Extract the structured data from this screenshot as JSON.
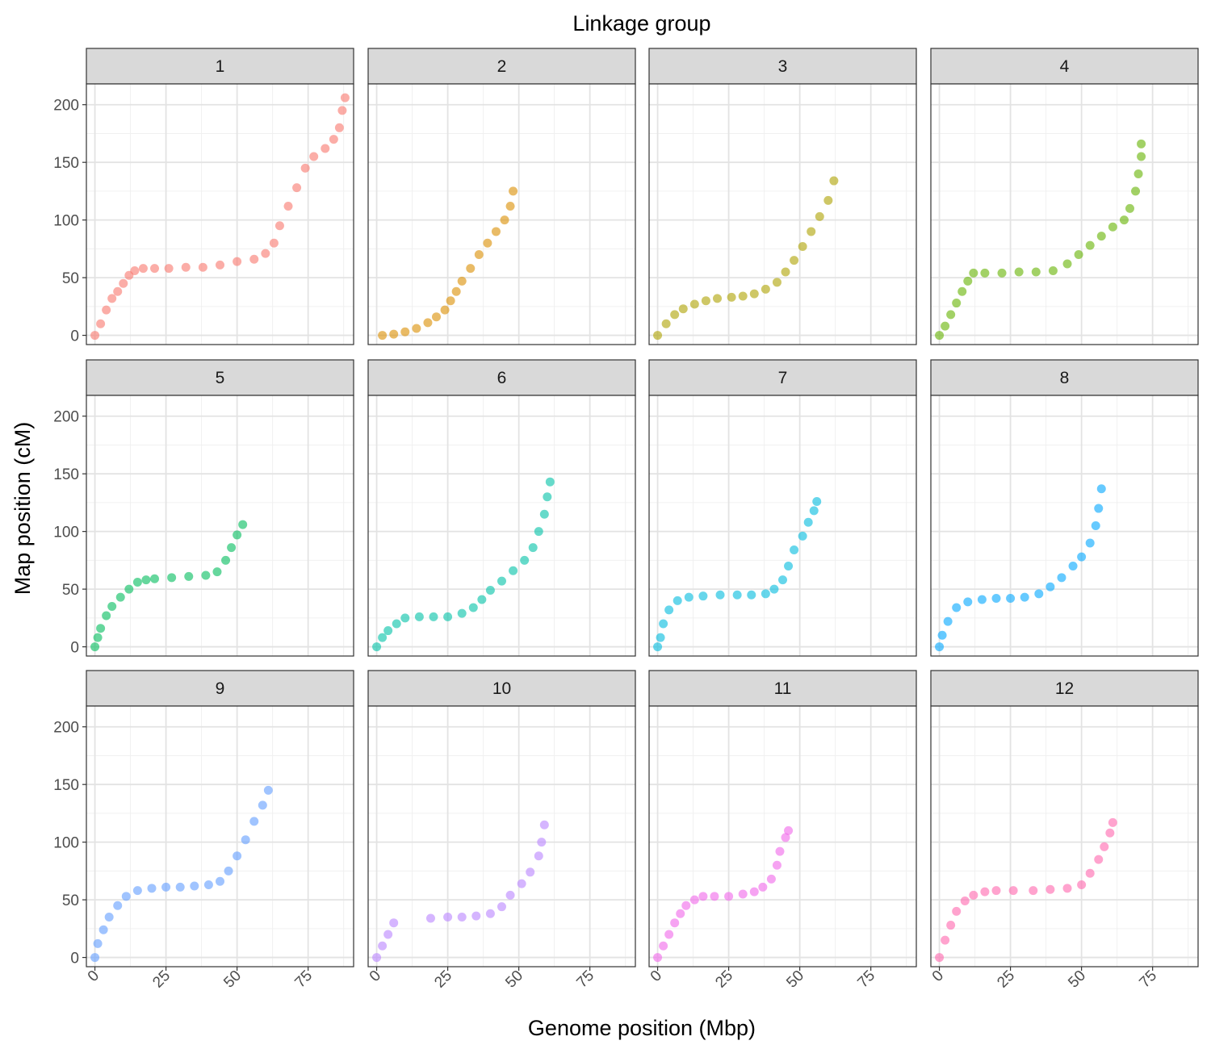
{
  "chart_data": {
    "type": "scatter",
    "title": "Linkage group",
    "xlabel": "Genome position (Mbp)",
    "ylabel": "Map position (cM)",
    "xlim": [
      -3,
      91
    ],
    "ylim": [
      -8,
      218
    ],
    "x_ticks": [
      "0",
      "25",
      "50",
      "75"
    ],
    "y_ticks": [
      "0",
      "50",
      "100",
      "150",
      "200"
    ],
    "grid": true,
    "legend": "none",
    "panels": [
      {
        "label": "1",
        "color": "#F8766D",
        "points": [
          [
            0,
            0
          ],
          [
            2,
            10
          ],
          [
            4,
            22
          ],
          [
            6,
            32
          ],
          [
            8,
            38
          ],
          [
            10,
            45
          ],
          [
            12,
            52
          ],
          [
            14,
            56
          ],
          [
            17,
            58
          ],
          [
            21,
            58
          ],
          [
            26,
            58
          ],
          [
            32,
            59
          ],
          [
            38,
            59
          ],
          [
            44,
            61
          ],
          [
            50,
            64
          ],
          [
            56,
            66
          ],
          [
            60,
            71
          ],
          [
            63,
            80
          ],
          [
            65,
            95
          ],
          [
            68,
            112
          ],
          [
            71,
            128
          ],
          [
            74,
            145
          ],
          [
            77,
            155
          ],
          [
            81,
            162
          ],
          [
            84,
            170
          ],
          [
            86,
            180
          ],
          [
            87,
            195
          ],
          [
            88,
            206
          ]
        ]
      },
      {
        "label": "2",
        "color": "#DB8E00",
        "points": [
          [
            2,
            0
          ],
          [
            6,
            1
          ],
          [
            10,
            3
          ],
          [
            14,
            6
          ],
          [
            18,
            11
          ],
          [
            21,
            16
          ],
          [
            24,
            22
          ],
          [
            26,
            30
          ],
          [
            28,
            38
          ],
          [
            30,
            47
          ],
          [
            33,
            58
          ],
          [
            36,
            70
          ],
          [
            39,
            80
          ],
          [
            42,
            90
          ],
          [
            45,
            100
          ],
          [
            47,
            112
          ],
          [
            48,
            125
          ]
        ]
      },
      {
        "label": "3",
        "color": "#AEA200",
        "points": [
          [
            0,
            0
          ],
          [
            3,
            10
          ],
          [
            6,
            18
          ],
          [
            9,
            23
          ],
          [
            13,
            27
          ],
          [
            17,
            30
          ],
          [
            21,
            32
          ],
          [
            26,
            33
          ],
          [
            30,
            34
          ],
          [
            34,
            36
          ],
          [
            38,
            40
          ],
          [
            42,
            46
          ],
          [
            45,
            55
          ],
          [
            48,
            65
          ],
          [
            51,
            77
          ],
          [
            54,
            90
          ],
          [
            57,
            103
          ],
          [
            60,
            117
          ],
          [
            62,
            134
          ]
        ]
      },
      {
        "label": "4",
        "color": "#64B200",
        "points": [
          [
            0,
            0
          ],
          [
            2,
            8
          ],
          [
            4,
            18
          ],
          [
            6,
            28
          ],
          [
            8,
            38
          ],
          [
            10,
            47
          ],
          [
            12,
            54
          ],
          [
            16,
            54
          ],
          [
            22,
            54
          ],
          [
            28,
            55
          ],
          [
            34,
            55
          ],
          [
            40,
            56
          ],
          [
            45,
            62
          ],
          [
            49,
            70
          ],
          [
            53,
            78
          ],
          [
            57,
            86
          ],
          [
            61,
            94
          ],
          [
            65,
            100
          ],
          [
            67,
            110
          ],
          [
            69,
            125
          ],
          [
            70,
            140
          ],
          [
            71,
            155
          ],
          [
            71,
            166
          ]
        ]
      },
      {
        "label": "5",
        "color": "#00BD5C",
        "points": [
          [
            0,
            0
          ],
          [
            1,
            8
          ],
          [
            2,
            16
          ],
          [
            4,
            27
          ],
          [
            6,
            35
          ],
          [
            9,
            43
          ],
          [
            12,
            50
          ],
          [
            15,
            56
          ],
          [
            18,
            58
          ],
          [
            21,
            59
          ],
          [
            27,
            60
          ],
          [
            33,
            61
          ],
          [
            39,
            62
          ],
          [
            43,
            65
          ],
          [
            46,
            75
          ],
          [
            48,
            86
          ],
          [
            50,
            97
          ],
          [
            52,
            106
          ]
        ]
      },
      {
        "label": "6",
        "color": "#00C1A7",
        "points": [
          [
            0,
            0
          ],
          [
            2,
            8
          ],
          [
            4,
            14
          ],
          [
            7,
            20
          ],
          [
            10,
            25
          ],
          [
            15,
            26
          ],
          [
            20,
            26
          ],
          [
            25,
            26
          ],
          [
            30,
            29
          ],
          [
            34,
            34
          ],
          [
            37,
            41
          ],
          [
            40,
            49
          ],
          [
            44,
            57
          ],
          [
            48,
            66
          ],
          [
            52,
            75
          ],
          [
            55,
            86
          ],
          [
            57,
            100
          ],
          [
            59,
            115
          ],
          [
            60,
            130
          ],
          [
            61,
            143
          ]
        ]
      },
      {
        "label": "7",
        "color": "#00BADE",
        "points": [
          [
            0,
            0
          ],
          [
            1,
            8
          ],
          [
            2,
            20
          ],
          [
            4,
            32
          ],
          [
            7,
            40
          ],
          [
            11,
            43
          ],
          [
            16,
            44
          ],
          [
            22,
            45
          ],
          [
            28,
            45
          ],
          [
            33,
            45
          ],
          [
            38,
            46
          ],
          [
            41,
            50
          ],
          [
            44,
            58
          ],
          [
            46,
            70
          ],
          [
            48,
            84
          ],
          [
            51,
            96
          ],
          [
            53,
            108
          ],
          [
            55,
            118
          ],
          [
            56,
            126
          ]
        ]
      },
      {
        "label": "8",
        "color": "#00A6FF",
        "points": [
          [
            0,
            0
          ],
          [
            1,
            10
          ],
          [
            3,
            22
          ],
          [
            6,
            34
          ],
          [
            10,
            39
          ],
          [
            15,
            41
          ],
          [
            20,
            42
          ],
          [
            25,
            42
          ],
          [
            30,
            43
          ],
          [
            35,
            46
          ],
          [
            39,
            52
          ],
          [
            43,
            60
          ],
          [
            47,
            70
          ],
          [
            50,
            78
          ],
          [
            53,
            90
          ],
          [
            55,
            105
          ],
          [
            56,
            120
          ],
          [
            57,
            137
          ]
        ]
      },
      {
        "label": "9",
        "color": "#619CFF",
        "points": [
          [
            0,
            0
          ],
          [
            1,
            12
          ],
          [
            3,
            24
          ],
          [
            5,
            35
          ],
          [
            8,
            45
          ],
          [
            11,
            53
          ],
          [
            15,
            58
          ],
          [
            20,
            60
          ],
          [
            25,
            61
          ],
          [
            30,
            61
          ],
          [
            35,
            62
          ],
          [
            40,
            63
          ],
          [
            44,
            66
          ],
          [
            47,
            75
          ],
          [
            50,
            88
          ],
          [
            53,
            102
          ],
          [
            56,
            118
          ],
          [
            59,
            132
          ],
          [
            61,
            145
          ]
        ]
      },
      {
        "label": "10",
        "color": "#B983FF",
        "points": [
          [
            0,
            0
          ],
          [
            2,
            10
          ],
          [
            4,
            20
          ],
          [
            6,
            30
          ],
          [
            19,
            34
          ],
          [
            25,
            35
          ],
          [
            30,
            35
          ],
          [
            35,
            36
          ],
          [
            40,
            38
          ],
          [
            44,
            44
          ],
          [
            47,
            54
          ],
          [
            51,
            64
          ],
          [
            54,
            74
          ],
          [
            57,
            88
          ],
          [
            58,
            100
          ],
          [
            59,
            115
          ]
        ]
      },
      {
        "label": "11",
        "color": "#F066EA",
        "points": [
          [
            0,
            0
          ],
          [
            2,
            10
          ],
          [
            4,
            20
          ],
          [
            6,
            30
          ],
          [
            8,
            38
          ],
          [
            10,
            45
          ],
          [
            13,
            50
          ],
          [
            16,
            53
          ],
          [
            20,
            53
          ],
          [
            25,
            53
          ],
          [
            30,
            55
          ],
          [
            34,
            57
          ],
          [
            37,
            61
          ],
          [
            40,
            68
          ],
          [
            42,
            80
          ],
          [
            43,
            92
          ],
          [
            45,
            104
          ],
          [
            46,
            110
          ]
        ]
      },
      {
        "label": "12",
        "color": "#FF65AE",
        "points": [
          [
            0,
            0
          ],
          [
            2,
            15
          ],
          [
            4,
            28
          ],
          [
            6,
            40
          ],
          [
            9,
            49
          ],
          [
            12,
            54
          ],
          [
            16,
            57
          ],
          [
            20,
            58
          ],
          [
            26,
            58
          ],
          [
            33,
            58
          ],
          [
            39,
            59
          ],
          [
            45,
            60
          ],
          [
            50,
            63
          ],
          [
            53,
            73
          ],
          [
            56,
            85
          ],
          [
            58,
            96
          ],
          [
            60,
            108
          ],
          [
            61,
            117
          ]
        ]
      }
    ]
  }
}
